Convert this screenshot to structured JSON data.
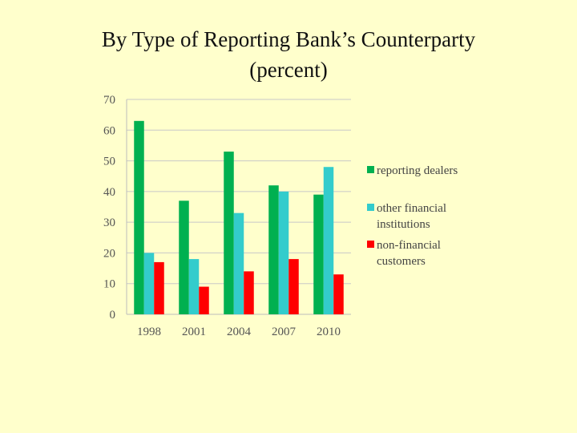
{
  "title_line1": "By Type of Reporting Bank’s Counterparty",
  "title_line2": "(percent)",
  "chart_data": {
    "type": "bar",
    "categories": [
      "1998",
      "2001",
      "2004",
      "2007",
      "2010"
    ],
    "series": [
      {
        "name": "reporting dealers",
        "values": [
          63,
          37,
          53,
          42,
          39
        ],
        "color": "#00b050"
      },
      {
        "name": "other financial institutions",
        "values": [
          20,
          18,
          33,
          40,
          48
        ],
        "color": "#33cccc"
      },
      {
        "name": "non-financial customers",
        "values": [
          17,
          9,
          14,
          18,
          13
        ],
        "color": "#ff0000"
      }
    ],
    "legend_lines": [
      [
        "reporting dealers"
      ],
      [
        "other financial",
        "institutions"
      ],
      [
        "non-financial",
        "customers"
      ]
    ],
    "ylim": [
      0,
      70
    ],
    "yticks": [
      0,
      10,
      20,
      30,
      40,
      50,
      60,
      70
    ],
    "grid": true,
    "legend_position": "right",
    "xlabel": "",
    "ylabel": ""
  }
}
